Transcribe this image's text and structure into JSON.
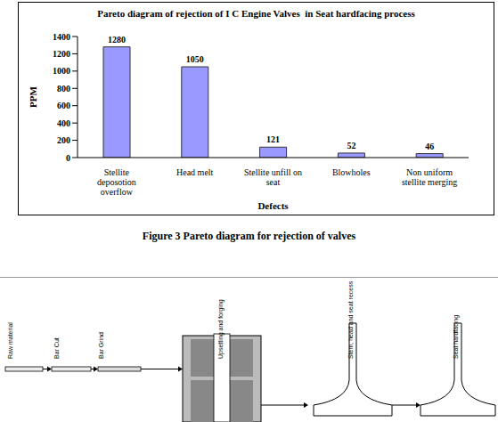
{
  "chart_data": {
    "type": "bar",
    "title": "Pareto diagram of rejection of I C Engine Valves  in Seat hardfacing process",
    "x_label": "Defects",
    "y_label": "PPM",
    "categories": [
      "Stellite deposotion overflow",
      "Head melt",
      "Stellite unfill on seat",
      "Blowholes",
      "Non uniform stellite merging"
    ],
    "values": [
      1280,
      1050,
      121,
      52,
      46
    ],
    "color": "#9999ff",
    "ylim": [
      0,
      1400
    ],
    "yticks": [
      0,
      200,
      400,
      600,
      800,
      1000,
      1200,
      1400
    ],
    "grid": false,
    "data_labels": true
  },
  "caption": "Figure 3 Pareto diagram for rejection of valves",
  "diagram": {
    "steps": [
      "Raw material",
      "Bar Cut",
      "Bar Grind",
      "Upsetting and forging",
      "Stem, head and seat recess",
      "Seat hardfacing"
    ]
  }
}
